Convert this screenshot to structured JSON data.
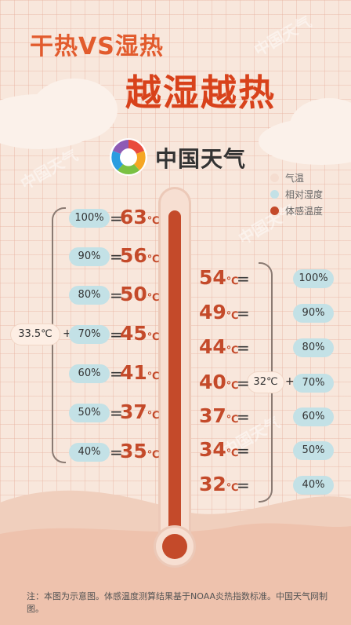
{
  "title_line1": "干热VS湿热",
  "title_line2": "越湿越热",
  "brand": "中国天气",
  "watermark": "中国天气",
  "legend": [
    {
      "label": "气温",
      "color": "#f5ddd0"
    },
    {
      "label": "相对湿度",
      "color": "#c3e1e6"
    },
    {
      "label": "体感温度",
      "color": "#c44a2a"
    }
  ],
  "dry_case": {
    "ambient": "33.5℃",
    "rows": [
      {
        "humidity": "100%",
        "feels": "63",
        "unit": "℃"
      },
      {
        "humidity": "90%",
        "feels": "56",
        "unit": "℃"
      },
      {
        "humidity": "80%",
        "feels": "50",
        "unit": "℃"
      },
      {
        "humidity": "70%",
        "feels": "45",
        "unit": "℃"
      },
      {
        "humidity": "60%",
        "feels": "41",
        "unit": "℃"
      },
      {
        "humidity": "50%",
        "feels": "37",
        "unit": "℃"
      },
      {
        "humidity": "40%",
        "feels": "35",
        "unit": "℃"
      }
    ]
  },
  "humid_case": {
    "ambient": "32℃",
    "rows": [
      {
        "humidity": "100%",
        "feels": "54",
        "unit": "℃"
      },
      {
        "humidity": "90%",
        "feels": "49",
        "unit": "℃"
      },
      {
        "humidity": "80%",
        "feels": "44",
        "unit": "℃"
      },
      {
        "humidity": "70%",
        "feels": "40",
        "unit": "℃"
      },
      {
        "humidity": "60%",
        "feels": "37",
        "unit": "℃"
      },
      {
        "humidity": "50%",
        "feels": "34",
        "unit": "℃"
      },
      {
        "humidity": "40%",
        "feels": "32",
        "unit": "℃"
      }
    ]
  },
  "symbols": {
    "equals": "=",
    "plus": "+"
  },
  "footnote": "注：本图为示意图。体感温度测算结果基于NOAA炎热指数标准。中国天气网制图。"
}
